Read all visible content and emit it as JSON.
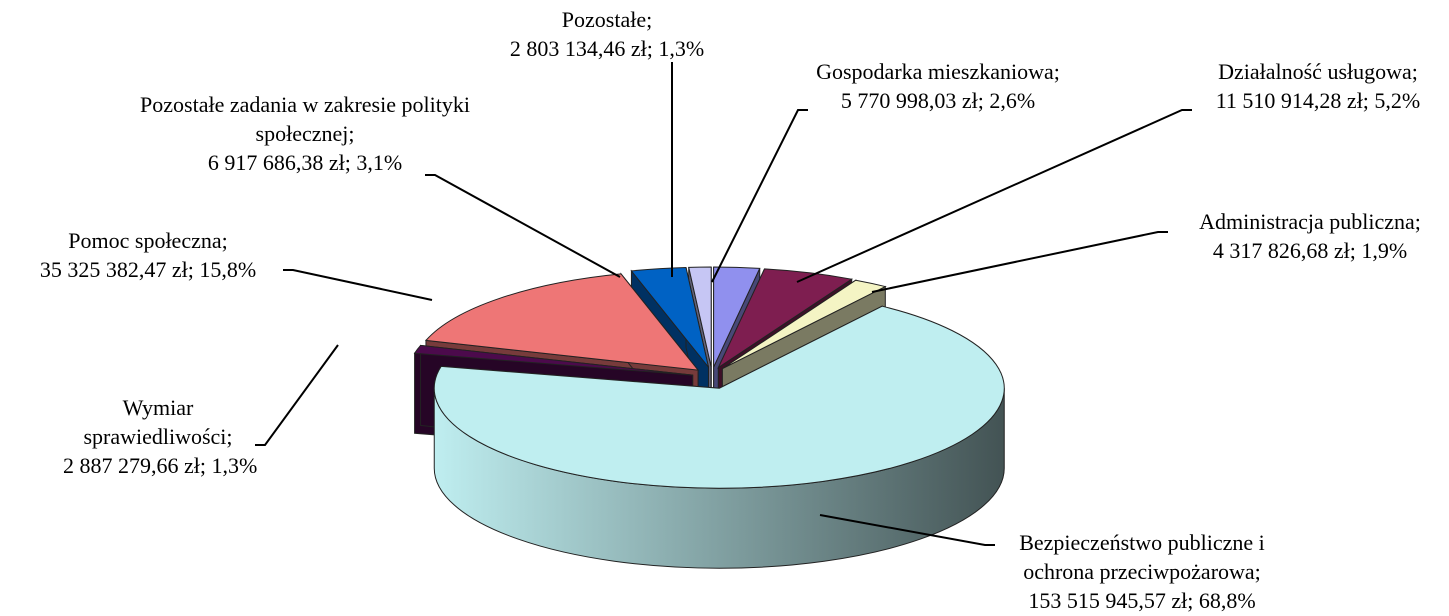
{
  "chart_data": {
    "type": "pie3d",
    "categories": [
      "Gospodarka mieszkaniowa;",
      "Działalność usługowa;",
      "Administracja publiczna;",
      "Bezpieczeństwo publiczne i ochrona przeciwpożarowa;",
      "Wymiar sprawiedliwości;",
      "Pomoc społeczna;",
      "Pozostałe zadania w zakresie polityki społecznej;",
      "Pozostałe;"
    ],
    "values": [
      5770998.03,
      11510914.28,
      4317826.68,
      153515945.57,
      2887279.66,
      35325382.47,
      6917686.38,
      2803134.46
    ],
    "value_labels": [
      "5 770 998,03 zł; 2,6%",
      "11 510 914,28 zł; 5,2%",
      "4 317 826,68 zł; 1,9%",
      "153 515 945,57 zł; 68,8%",
      "2 887 279,66 zł; 1,3%",
      "35 325 382,47 zł; 15,8%",
      "6 917 686,38 zł; 3,1%",
      "2 803 134,46 zł; 1,3%"
    ],
    "colors": [
      "#9090ee",
      "#7e1e50",
      "#f4f4c4",
      "#bfeef0",
      "#4c0a4c",
      "#ee7676",
      "#0062c4",
      "#c6c6f4"
    ]
  }
}
